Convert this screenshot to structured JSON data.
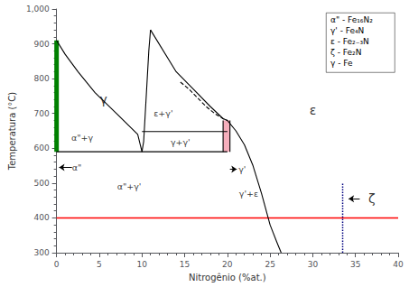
{
  "chart_data": {
    "type": "line",
    "xlabel": "Nitrogênio (%at.)",
    "ylabel": "Temperatura (°C)",
    "xlim": [
      0,
      40
    ],
    "ylim": [
      300,
      1000
    ],
    "xticks": [
      0,
      5,
      10,
      15,
      20,
      25,
      30,
      35,
      40
    ],
    "yticks": [
      300,
      400,
      500,
      600,
      700,
      800,
      900,
      1000
    ],
    "grid": false,
    "legend": "upper right",
    "legend_entries": [
      "α\" - Fe₁₆N₂",
      "γ' - Fe₄N",
      "ε - Fe₂₋₃N",
      "ζ - Fe₂N",
      "γ - Fe"
    ],
    "series": [
      {
        "type": "line",
        "color": "green",
        "line_style": "thick",
        "x": [
          0,
          0
        ],
        "values": [
          590,
          910
        ]
      },
      {
        "type": "band",
        "color": "#f4a0b0",
        "x": [
          19.5,
          20.3
        ],
        "values": [
          590,
          680
        ]
      },
      {
        "type": "line",
        "color": "navy",
        "line_style": "dotted",
        "x": [
          33.5,
          33.5
        ],
        "values": [
          300,
          500
        ]
      },
      {
        "type": "line",
        "color": "black",
        "line_style": "solid",
        "x": [
          0.0,
          1.0,
          2.5,
          4.5,
          7.0,
          9.5,
          10.0
        ],
        "values": [
          910,
          870,
          820,
          760,
          700,
          640,
          590
        ]
      },
      {
        "type": "line",
        "color": "black",
        "line_style": "solid",
        "x": [
          10.0,
          10.2,
          10.5,
          10.8,
          11.0
        ],
        "values": [
          590,
          620,
          750,
          880,
          940
        ]
      },
      {
        "type": "line",
        "color": "black",
        "line_style": "solid",
        "x": [
          11.0,
          14.0,
          16.0,
          18.0,
          19.5,
          20.0
        ],
        "values": [
          940,
          820,
          770,
          720,
          685,
          680
        ]
      },
      {
        "type": "line",
        "color": "black",
        "line_style": "solid",
        "x": [
          20.0,
          21.0,
          22.0,
          23.0,
          24.0,
          25.0,
          25.8,
          26.3
        ],
        "values": [
          680,
          650,
          610,
          550,
          470,
          380,
          330,
          300
        ]
      },
      {
        "type": "line",
        "color": "black",
        "line_style": "solid",
        "x": [
          0.0,
          20.0
        ],
        "values": [
          590,
          590
        ]
      },
      {
        "type": "line",
        "color": "black",
        "line_style": "solid",
        "x": [
          10.0,
          20.0
        ],
        "values": [
          648,
          648
        ]
      },
      {
        "type": "line",
        "color": "black",
        "line_style": "dashed",
        "x": [
          14.5,
          15.5,
          16.5,
          17.5,
          18.5,
          19.5,
          20.0
        ],
        "values": [
          790,
          770,
          745,
          720,
          700,
          685,
          680
        ]
      },
      {
        "type": "line",
        "color": "black",
        "line_style": "solid",
        "x": [
          19.5,
          19.5
        ],
        "values": [
          590,
          680
        ]
      },
      {
        "type": "line",
        "color": "black",
        "line_style": "solid",
        "x": [
          20.3,
          20.3
        ],
        "values": [
          590,
          680
        ]
      },
      {
        "type": "hline",
        "color": "red",
        "values": [
          400
        ]
      }
    ],
    "annotations": [
      {
        "text": "γ",
        "x": 5.5,
        "y": 740
      },
      {
        "text": "ε+γ'",
        "x": 12.5,
        "y": 700
      },
      {
        "text": "α\"+γ",
        "x": 3.0,
        "y": 630
      },
      {
        "text": "γ+γ'",
        "x": 14.5,
        "y": 618
      },
      {
        "text": "α\"+γ'",
        "x": 8.5,
        "y": 490
      },
      {
        "text": "α\"",
        "x": 1.8,
        "y": 545,
        "arrow_x": [
          1.8,
          0.3
        ]
      },
      {
        "text": "γ'",
        "x": 21.3,
        "y": 540,
        "arrow_x": [
          20.3,
          21.1
        ]
      },
      {
        "text": "ε",
        "x": 30,
        "y": 710
      },
      {
        "text": "γ'+ε",
        "x": 22.5,
        "y": 470
      },
      {
        "text": "ζ",
        "x": 36.5,
        "y": 455,
        "arrow_x": [
          35.5,
          34.2
        ]
      }
    ]
  }
}
